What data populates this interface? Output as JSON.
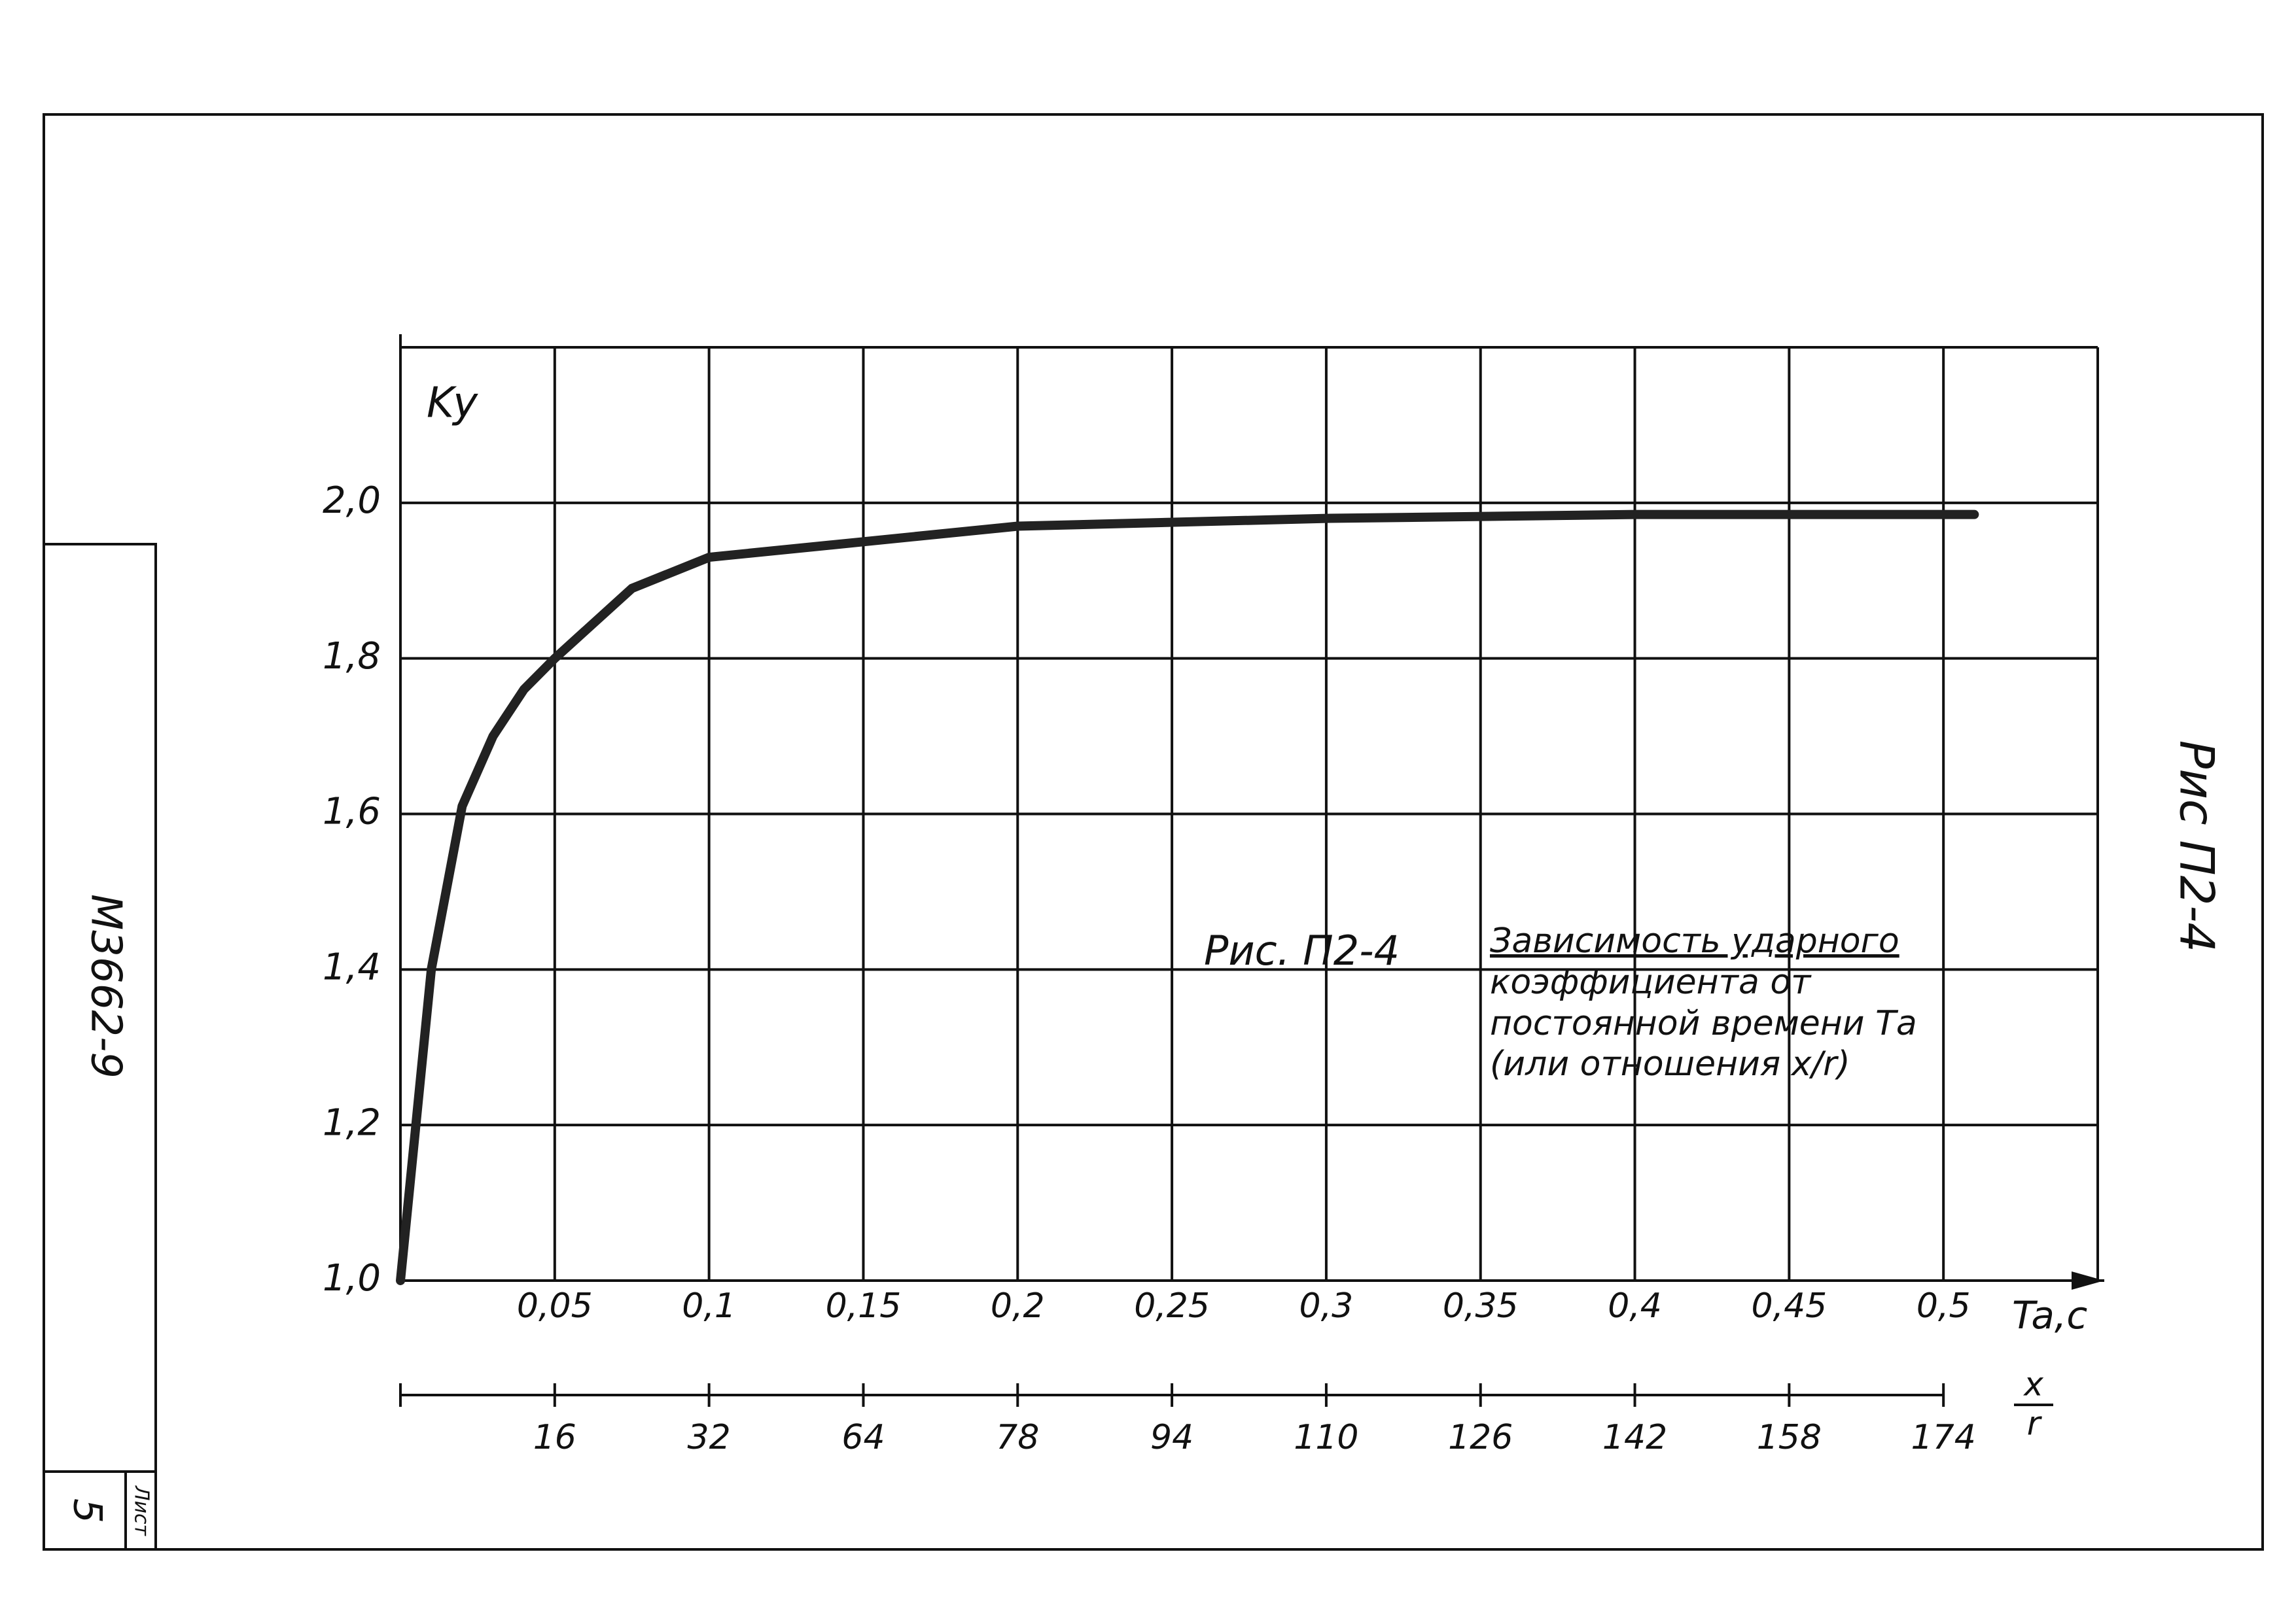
{
  "chart_data": {
    "type": "line",
    "ylabel": "Ky",
    "xlabel": "Ta,c",
    "x": [
      0,
      0.005,
      0.01,
      0.02,
      0.03,
      0.04,
      0.05,
      0.075,
      0.1,
      0.15,
      0.2,
      0.3,
      0.4,
      0.51
    ],
    "series": [
      {
        "name": "Ky",
        "color": "#222222",
        "values": [
          1.0,
          1.2,
          1.4,
          1.61,
          1.7,
          1.76,
          1.8,
          1.89,
          1.93,
          1.95,
          1.97,
          1.98,
          1.985,
          1.985
        ]
      }
    ],
    "xlim": [
      0,
      0.55
    ],
    "ylim": [
      1.0,
      2.2
    ],
    "xticks": [
      {
        "value": 0.05,
        "label": "0,05"
      },
      {
        "value": 0.1,
        "label": "0,1"
      },
      {
        "value": 0.15,
        "label": "0,15"
      },
      {
        "value": 0.2,
        "label": "0,2"
      },
      {
        "value": 0.25,
        "label": "0,25"
      },
      {
        "value": 0.3,
        "label": "0,3"
      },
      {
        "value": 0.35,
        "label": "0,35"
      },
      {
        "value": 0.4,
        "label": "0,4"
      },
      {
        "value": 0.45,
        "label": "0,45"
      },
      {
        "value": 0.5,
        "label": "0,5"
      }
    ],
    "yticks": [
      {
        "value": 1.0,
        "label": "1,0"
      },
      {
        "value": 1.2,
        "label": "1,2"
      },
      {
        "value": 1.4,
        "label": "1,4"
      },
      {
        "value": 1.6,
        "label": "1,6"
      },
      {
        "value": 1.8,
        "label": "1,8"
      },
      {
        "value": 2.0,
        "label": "2,0"
      }
    ],
    "x2_tick_labels": [
      16,
      32,
      64,
      78,
      94,
      110,
      126,
      142,
      158,
      174
    ],
    "x2label": {
      "numerator": "x",
      "denominator": "r"
    },
    "grid": true,
    "annotation": {
      "title": "Рис. П2-4",
      "lines": [
        "Зависимость ударного",
        "коэффициента от",
        "постоянной времени Та",
        "(или отношения х/r)"
      ]
    }
  },
  "stamp": {
    "code": "М3662-9",
    "figure": "Рис П2-4",
    "sheet_label": "Лист",
    "sheet_number": "5"
  }
}
